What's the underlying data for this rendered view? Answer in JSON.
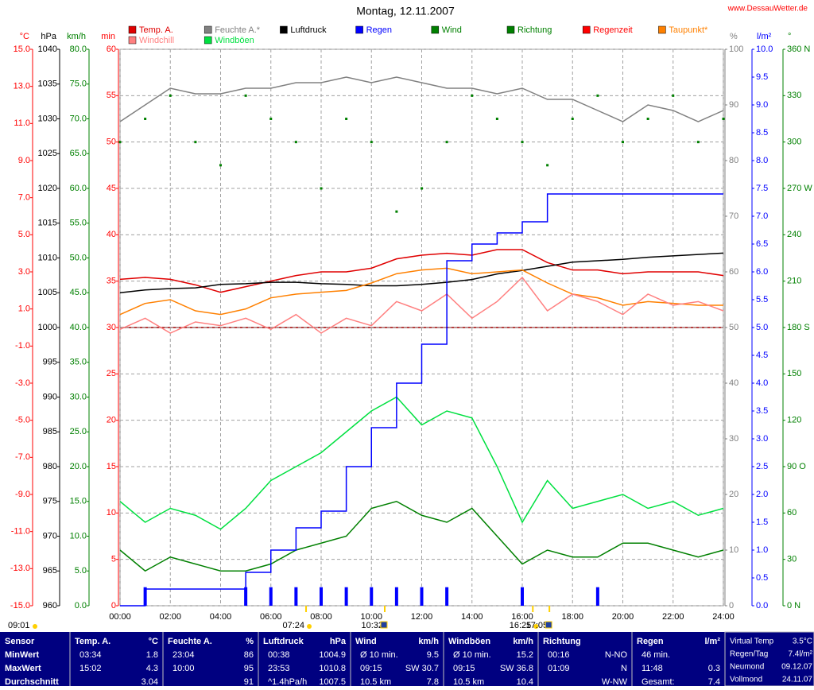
{
  "chart_data": {
    "type": "line",
    "title": "Montag, 12.11.2007",
    "site": "www.DessauWetter.de",
    "grid": true,
    "xlim": [
      0,
      24
    ],
    "xticks": [
      {
        "value": 0,
        "label": "00:00"
      },
      {
        "value": 2,
        "label": "02:00"
      },
      {
        "value": 4,
        "label": "04:00"
      },
      {
        "value": 6,
        "label": "06:00"
      },
      {
        "value": 8,
        "label": "08:00"
      },
      {
        "value": 10,
        "label": "10:00"
      },
      {
        "value": 12,
        "label": "12:00"
      },
      {
        "value": 14,
        "label": "14:00"
      },
      {
        "value": 16,
        "label": "16:00"
      },
      {
        "value": 18,
        "label": "18:00"
      },
      {
        "value": 20,
        "label": "20:00"
      },
      {
        "value": 22,
        "label": "22:00"
      },
      {
        "value": 24,
        "label": "24:00"
      }
    ],
    "axes": [
      {
        "label": "°C",
        "color": "#ff0000",
        "side": "left",
        "ylim": [
          -15,
          15
        ],
        "yticks": [
          {
            "value": -15,
            "label": "-15.0"
          },
          {
            "value": -13,
            "label": "-13.0"
          },
          {
            "value": -11,
            "label": "-11.0"
          },
          {
            "value": -9,
            "label": "-9.0"
          },
          {
            "value": -7,
            "label": "-7.0"
          },
          {
            "value": -5,
            "label": "-5.0"
          },
          {
            "value": -3,
            "label": "-3.0"
          },
          {
            "value": -1,
            "label": "-1.0"
          },
          {
            "value": 1,
            "label": "1.0"
          },
          {
            "value": 3,
            "label": "3.0"
          },
          {
            "value": 5,
            "label": "5.0"
          },
          {
            "value": 7,
            "label": "7.0"
          },
          {
            "value": 9,
            "label": "9.0"
          },
          {
            "value": 11,
            "label": "11.0"
          },
          {
            "value": 13,
            "label": "13.0"
          },
          {
            "value": 15,
            "label": "15.0"
          }
        ]
      },
      {
        "label": "hPa",
        "color": "#000000",
        "side": "left",
        "ylim": [
          960,
          1040
        ],
        "yticks": [
          960,
          965,
          970,
          975,
          980,
          985,
          990,
          995,
          1000,
          1005,
          1010,
          1015,
          1020,
          1025,
          1030,
          1035,
          1040
        ]
      },
      {
        "label": "km/h",
        "color": "#008000",
        "side": "left",
        "ylim": [
          0,
          80
        ],
        "yticks": [
          {
            "value": 0,
            "label": "0.0"
          },
          {
            "value": 5,
            "label": "5.0"
          },
          {
            "value": 10,
            "label": "10.0"
          },
          {
            "value": 15,
            "label": "15.0"
          },
          {
            "value": 20,
            "label": "20.0"
          },
          {
            "value": 25,
            "label": "25.0"
          },
          {
            "value": 30,
            "label": "30.0"
          },
          {
            "value": 35,
            "label": "35.0"
          },
          {
            "value": 40,
            "label": "40.0"
          },
          {
            "value": 45,
            "label": "45.0"
          },
          {
            "value": 50,
            "label": "50.0"
          },
          {
            "value": 55,
            "label": "55.0"
          },
          {
            "value": 60,
            "label": "60.0"
          },
          {
            "value": 65,
            "label": "65.0"
          },
          {
            "value": 70,
            "label": "70.0"
          },
          {
            "value": 75,
            "label": "75.0"
          },
          {
            "value": 80,
            "label": "80.0"
          }
        ]
      },
      {
        "label": "min",
        "color": "#ff0000",
        "side": "left",
        "ylim": [
          0,
          60
        ],
        "yticks": [
          0,
          5,
          10,
          15,
          20,
          25,
          30,
          35,
          40,
          45,
          50,
          55,
          60
        ],
        "grid": true
      },
      {
        "label": "%",
        "color": "#808080",
        "side": "right",
        "ylim": [
          0,
          100
        ],
        "yticks": [
          0,
          10,
          20,
          30,
          40,
          50,
          60,
          70,
          80,
          90,
          100
        ]
      },
      {
        "label": "l/m²",
        "color": "#0000ff",
        "side": "right",
        "ylim": [
          0,
          10
        ],
        "yticks": [
          {
            "value": 0,
            "label": "0.0"
          },
          {
            "value": 0.5,
            "label": "0.5"
          },
          {
            "value": 1,
            "label": "1.0"
          },
          {
            "value": 1.5,
            "label": "1.5"
          },
          {
            "value": 2,
            "label": "2.0"
          },
          {
            "value": 2.5,
            "label": "2.5"
          },
          {
            "value": 3,
            "label": "3.0"
          },
          {
            "value": 3.5,
            "label": "3.5"
          },
          {
            "value": 4,
            "label": "4.0"
          },
          {
            "value": 4.5,
            "label": "4.5"
          },
          {
            "value": 5,
            "label": "5.0"
          },
          {
            "value": 5.5,
            "label": "5.5"
          },
          {
            "value": 6,
            "label": "6.0"
          },
          {
            "value": 6.5,
            "label": "6.5"
          },
          {
            "value": 7,
            "label": "7.0"
          },
          {
            "value": 7.5,
            "label": "7.5"
          },
          {
            "value": 8,
            "label": "8.0"
          },
          {
            "value": 8.5,
            "label": "8.5"
          },
          {
            "value": 9,
            "label": "9.0"
          },
          {
            "value": 9.5,
            "label": "9.5"
          },
          {
            "value": 10,
            "label": "10.0"
          }
        ]
      },
      {
        "label": "°",
        "color": "#008000",
        "side": "right",
        "ylim": [
          0,
          360
        ],
        "yticks": [
          {
            "value": 0,
            "label": "0 N"
          },
          30,
          60,
          {
            "value": 90,
            "label": "90 O"
          },
          120,
          150,
          {
            "value": 180,
            "label": "180 S"
          },
          210,
          240,
          {
            "value": 270,
            "label": "270 W"
          },
          300,
          330,
          {
            "value": 360,
            "label": "360 N"
          }
        ]
      }
    ],
    "x": [
      0,
      1,
      2,
      3,
      4,
      5,
      6,
      7,
      8,
      9,
      10,
      11,
      12,
      13,
      14,
      15,
      16,
      17,
      18,
      19,
      20,
      21,
      22,
      23,
      24
    ],
    "series": [
      {
        "name": "Temp. A.",
        "color": "#e00000",
        "axis": 0,
        "style": "line",
        "values": [
          2.6,
          2.7,
          2.6,
          2.3,
          1.9,
          2.2,
          2.5,
          2.8,
          3.0,
          3.0,
          3.2,
          3.7,
          3.9,
          4.0,
          3.9,
          4.2,
          4.2,
          3.5,
          3.1,
          3.1,
          2.9,
          3.0,
          3.0,
          3.0,
          2.8
        ]
      },
      {
        "name": "Feuchte A.*",
        "color": "#808080",
        "axis": 4,
        "style": "line",
        "values": [
          87,
          90,
          93,
          92,
          92,
          93,
          93,
          94,
          94,
          95,
          94,
          95,
          94,
          93,
          93,
          92,
          93,
          91,
          91,
          89,
          87,
          90,
          89,
          87,
          89
        ]
      },
      {
        "name": "Luftdruck",
        "color": "#000000",
        "axis": 1,
        "style": "line",
        "values": [
          1005.0,
          1005.4,
          1005.6,
          1005.7,
          1006.2,
          1006.3,
          1006.5,
          1006.5,
          1006.3,
          1006.2,
          1006.0,
          1006.0,
          1006.2,
          1006.5,
          1006.9,
          1007.7,
          1008.2,
          1008.8,
          1009.4,
          1009.6,
          1009.8,
          1010.1,
          1010.3,
          1010.5,
          1010.7
        ]
      },
      {
        "name": "Regen",
        "color": "#0000ff",
        "axis": 5,
        "style": "step",
        "values": [
          0,
          0.3,
          0.3,
          0.3,
          0.3,
          0.6,
          1.0,
          1.4,
          1.7,
          2.5,
          3.2,
          4.0,
          4.7,
          6.2,
          6.5,
          6.7,
          6.9,
          7.4,
          7.4,
          7.4,
          7.4,
          7.4,
          7.4,
          7.4,
          7.4
        ]
      },
      {
        "name": "Wind",
        "color": "#008000",
        "axis": 2,
        "style": "line",
        "values": [
          8,
          5,
          7,
          6,
          5,
          5,
          6,
          8,
          9,
          10,
          14,
          15,
          13,
          12,
          14,
          10,
          6,
          8,
          7,
          7,
          9,
          9,
          8,
          7,
          8
        ]
      },
      {
        "name": "Richtung",
        "color": "#008000",
        "axis": 6,
        "style": "dots",
        "values": [
          300,
          315,
          330,
          300,
          285,
          330,
          315,
          300,
          270,
          315,
          300,
          255,
          270,
          300,
          330,
          315,
          300,
          285,
          315,
          330,
          300,
          315,
          330,
          300,
          315
        ]
      },
      {
        "name": "Regenzeit",
        "color": "#ff0000",
        "bar_color": "#0000ff",
        "axis": 3,
        "style": "bars",
        "values": [
          0,
          2,
          0,
          0,
          0,
          2,
          2,
          2,
          2,
          2,
          2,
          2,
          2,
          2,
          0,
          0,
          2,
          0,
          0,
          2,
          0,
          0,
          0,
          0,
          0
        ]
      },
      {
        "name": "Taupunkt*",
        "color": "#ff8000",
        "axis": 0,
        "style": "line",
        "values": [
          0.7,
          1.3,
          1.5,
          0.9,
          0.7,
          1.0,
          1.6,
          1.8,
          1.9,
          2.0,
          2.4,
          2.9,
          3.1,
          3.2,
          2.9,
          3.0,
          3.1,
          2.4,
          1.8,
          1.6,
          1.2,
          1.4,
          1.3,
          1.2,
          1.2
        ]
      },
      {
        "name": "Windchill",
        "color": "#ff8080",
        "axis": 0,
        "style": "line",
        "values": [
          -0.1,
          0.5,
          -0.3,
          0.3,
          0.1,
          0.5,
          -0.1,
          0.7,
          -0.3,
          0.5,
          0.1,
          1.4,
          0.9,
          1.8,
          0.5,
          1.4,
          2.7,
          0.9,
          1.8,
          1.4,
          0.7,
          1.8,
          1.2,
          1.4,
          0.9
        ]
      },
      {
        "name": "Windböen",
        "color": "#00e040",
        "axis": 2,
        "style": "line",
        "values": [
          15,
          12,
          14,
          13,
          11,
          14,
          18,
          20,
          22,
          25,
          28,
          30,
          26,
          28,
          27,
          20,
          12,
          18,
          14,
          15,
          16,
          14,
          15,
          13,
          14
        ]
      }
    ],
    "markers": [
      {
        "label": "09:01",
        "x": null,
        "icon": "sun"
      },
      {
        "label": "07:24",
        "x": 7.4,
        "icon": "sun"
      },
      {
        "label": "10:32",
        "x": 10.53,
        "icon": "moon"
      },
      {
        "label": "16:25",
        "x": 16.42,
        "icon": "sun"
      },
      {
        "label": "17:05",
        "x": 17.08,
        "icon": "moon"
      }
    ]
  },
  "stats": {
    "row_labels": [
      "Sensor",
      "MinWert",
      "MaxWert",
      "Durchschnitt"
    ],
    "columns": [
      {
        "title": "Temp. A.",
        "unit": "°C",
        "rows": [
          {
            "left": "03:34",
            "right": "1.8"
          },
          {
            "left": "15:02",
            "right": "4.3"
          },
          {
            "right": "3.04"
          }
        ]
      },
      {
        "title": "Feuchte A.",
        "unit": "%",
        "rows": [
          {
            "left": "23:04",
            "right": "86"
          },
          {
            "left": "10:00",
            "right": "95"
          },
          {
            "right": "91"
          }
        ]
      },
      {
        "title": "Luftdruck",
        "unit": "hPa",
        "rows": [
          {
            "left": "00:38",
            "right": "1004.9"
          },
          {
            "left": "23:53",
            "right": "1010.8"
          },
          {
            "left": "^1.4hPa/h",
            "right": "1007.5"
          }
        ]
      },
      {
        "title": "Wind",
        "unit": "km/h",
        "rows": [
          {
            "left": "Ø 10 min.",
            "right": "9.5"
          },
          {
            "left": "09:15",
            "right": "SW 30.7"
          },
          {
            "left": "10.5 km",
            "right": "7.8"
          }
        ]
      },
      {
        "title": "Windböen",
        "unit": "km/h",
        "rows": [
          {
            "left": "Ø 10 min.",
            "right": "15.2"
          },
          {
            "left": "09:15",
            "right": "SW 36.8"
          },
          {
            "left": "10.5 km",
            "right": "10.4"
          }
        ]
      },
      {
        "title": "Richtung",
        "rows": [
          {
            "left": "00:16",
            "right": "N-NO"
          },
          {
            "left": "01:09",
            "right": "N"
          },
          {
            "right": "W-NW"
          }
        ]
      },
      {
        "title": "Regen",
        "unit": "l/m²",
        "rows": [
          {
            "left": "46 min."
          },
          {
            "left": "11:48",
            "right": "0.3"
          },
          {
            "left": "Gesamt:",
            "right": "7.4"
          }
        ]
      }
    ],
    "extra": [
      {
        "label": "Virtual Temp",
        "value": "3.5°C"
      },
      {
        "label": "Regen/Tag",
        "value": "7.4l/m²"
      },
      {
        "label": "Neumond",
        "value": "09.12.07"
      },
      {
        "label": "Vollmond",
        "value": "24.11.07"
      }
    ]
  }
}
